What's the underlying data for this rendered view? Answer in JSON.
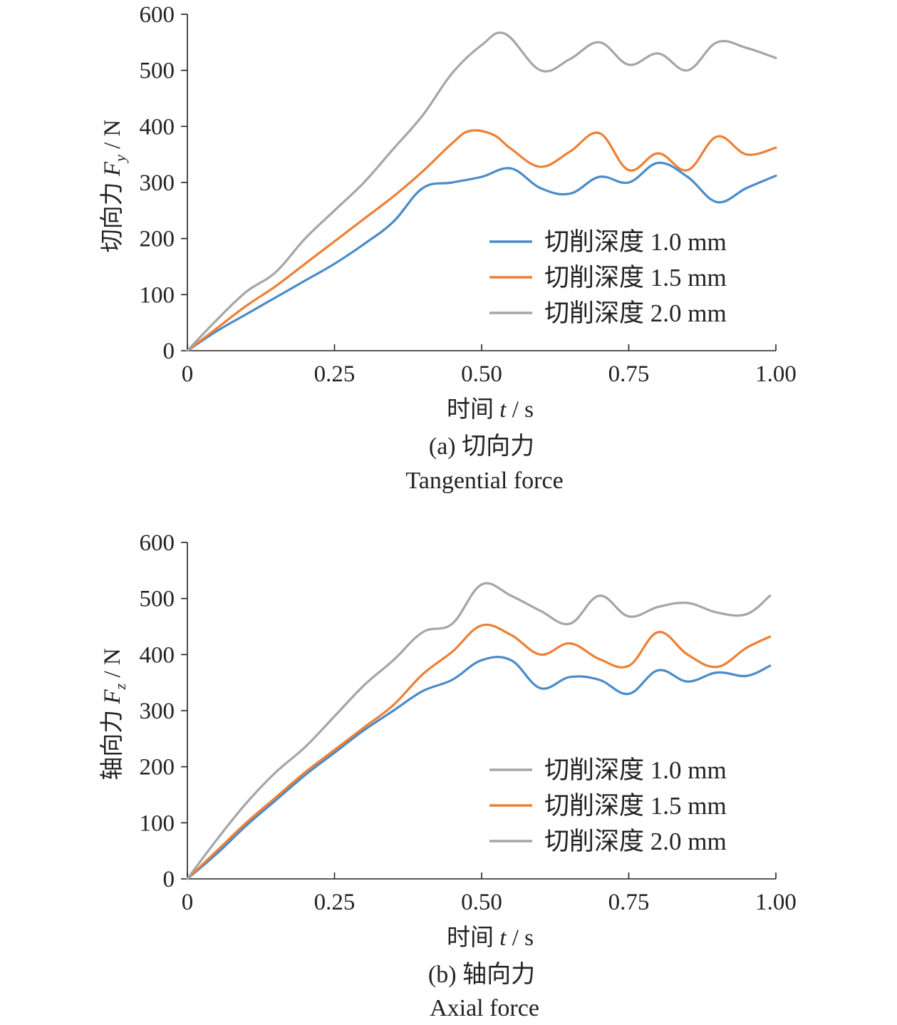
{
  "chart_data": [
    {
      "type": "line",
      "caption": "(a) 切向力",
      "caption_en": "Tangential force",
      "xlabel": "时间 t / s",
      "xlabel_parts": [
        "时间 ",
        "t",
        " / s"
      ],
      "ylabel": "切向力 Fy / N",
      "ylabel_parts": [
        "切向力 ",
        "F",
        "y",
        " / N"
      ],
      "xlim": [
        0,
        1.0
      ],
      "ylim": [
        0,
        600
      ],
      "xticks": [
        0,
        0.25,
        0.5,
        0.75,
        1.0
      ],
      "xtick_labels": [
        "0",
        "0.25",
        "0.50",
        "0.75",
        "1.00"
      ],
      "yticks": [
        0,
        100,
        200,
        300,
        400,
        500,
        600
      ],
      "ytick_labels": [
        "0",
        "100",
        "200",
        "300",
        "400",
        "500",
        "600"
      ],
      "grid": false,
      "legend_position": "lower-right",
      "series": [
        {
          "name": "切削深度 1.0 mm",
          "color": "#4a8bc9",
          "x": [
            0,
            0.05,
            0.1,
            0.15,
            0.2,
            0.25,
            0.3,
            0.35,
            0.4,
            0.45,
            0.5,
            0.55,
            0.6,
            0.65,
            0.7,
            0.75,
            0.8,
            0.85,
            0.9,
            0.95,
            1.0
          ],
          "y": [
            0,
            35,
            65,
            95,
            125,
            155,
            190,
            230,
            290,
            300,
            310,
            325,
            290,
            280,
            310,
            300,
            335,
            310,
            265,
            290,
            312
          ]
        },
        {
          "name": "切削深度 1.5 mm",
          "color": "#ee7f33",
          "x": [
            0,
            0.05,
            0.1,
            0.15,
            0.2,
            0.25,
            0.3,
            0.35,
            0.4,
            0.45,
            0.48,
            0.52,
            0.55,
            0.6,
            0.65,
            0.7,
            0.75,
            0.8,
            0.85,
            0.9,
            0.95,
            1.0
          ],
          "y": [
            0,
            40,
            80,
            115,
            155,
            195,
            235,
            275,
            320,
            370,
            392,
            385,
            360,
            328,
            355,
            388,
            322,
            352,
            322,
            382,
            350,
            362
          ]
        },
        {
          "name": "切削深度 2.0 mm",
          "color": "#a5a5a5",
          "x": [
            0,
            0.05,
            0.1,
            0.15,
            0.2,
            0.25,
            0.3,
            0.35,
            0.4,
            0.45,
            0.5,
            0.54,
            0.6,
            0.65,
            0.7,
            0.75,
            0.8,
            0.85,
            0.9,
            0.95,
            1.0
          ],
          "y": [
            0,
            55,
            105,
            140,
            200,
            250,
            300,
            360,
            420,
            495,
            545,
            565,
            500,
            520,
            550,
            510,
            530,
            500,
            550,
            540,
            522
          ]
        }
      ]
    },
    {
      "type": "line",
      "caption": "(b) 轴向力",
      "caption_en": "Axial force",
      "xlabel": "时间 t / s",
      "xlabel_parts": [
        "时间 ",
        "t",
        " / s"
      ],
      "ylabel": "轴向力 Fz / N",
      "ylabel_parts": [
        "轴向力 ",
        "F",
        "z",
        " / N"
      ],
      "xlim": [
        0,
        1.0
      ],
      "ylim": [
        0,
        600
      ],
      "xticks": [
        0,
        0.25,
        0.5,
        0.75,
        1.0
      ],
      "xtick_labels": [
        "0",
        "0.25",
        "0.50",
        "0.75",
        "1.00"
      ],
      "yticks": [
        0,
        100,
        200,
        300,
        400,
        500,
        600
      ],
      "ytick_labels": [
        "0",
        "100",
        "200",
        "300",
        "400",
        "500",
        "600"
      ],
      "grid": false,
      "legend_position": "lower-right",
      "series": [
        {
          "name": "切削深度 1.0 mm",
          "color": "#4a8bc9",
          "legend_color": "#a5a5a5",
          "x": [
            0,
            0.05,
            0.1,
            0.15,
            0.2,
            0.25,
            0.3,
            0.35,
            0.4,
            0.45,
            0.5,
            0.55,
            0.6,
            0.65,
            0.7,
            0.75,
            0.8,
            0.85,
            0.9,
            0.95,
            0.99
          ],
          "y": [
            0,
            45,
            95,
            140,
            185,
            225,
            265,
            300,
            335,
            355,
            390,
            390,
            340,
            360,
            355,
            330,
            372,
            352,
            368,
            362,
            380
          ]
        },
        {
          "name": "切削深度 1.5 mm",
          "color": "#ee7f33",
          "x": [
            0,
            0.05,
            0.1,
            0.15,
            0.2,
            0.25,
            0.3,
            0.35,
            0.4,
            0.45,
            0.5,
            0.55,
            0.6,
            0.65,
            0.7,
            0.75,
            0.8,
            0.85,
            0.9,
            0.95,
            0.99
          ],
          "y": [
            0,
            50,
            100,
            145,
            190,
            230,
            270,
            310,
            365,
            405,
            452,
            435,
            400,
            420,
            392,
            380,
            440,
            400,
            378,
            412,
            432
          ]
        },
        {
          "name": "切削深度 2.0 mm",
          "color": "#a5a5a5",
          "x": [
            0,
            0.05,
            0.1,
            0.15,
            0.2,
            0.25,
            0.3,
            0.35,
            0.4,
            0.45,
            0.5,
            0.55,
            0.6,
            0.65,
            0.7,
            0.75,
            0.8,
            0.85,
            0.9,
            0.95,
            0.99
          ],
          "y": [
            0,
            70,
            135,
            190,
            235,
            290,
            345,
            390,
            440,
            455,
            525,
            505,
            478,
            455,
            505,
            468,
            485,
            492,
            475,
            472,
            505
          ]
        }
      ]
    }
  ]
}
